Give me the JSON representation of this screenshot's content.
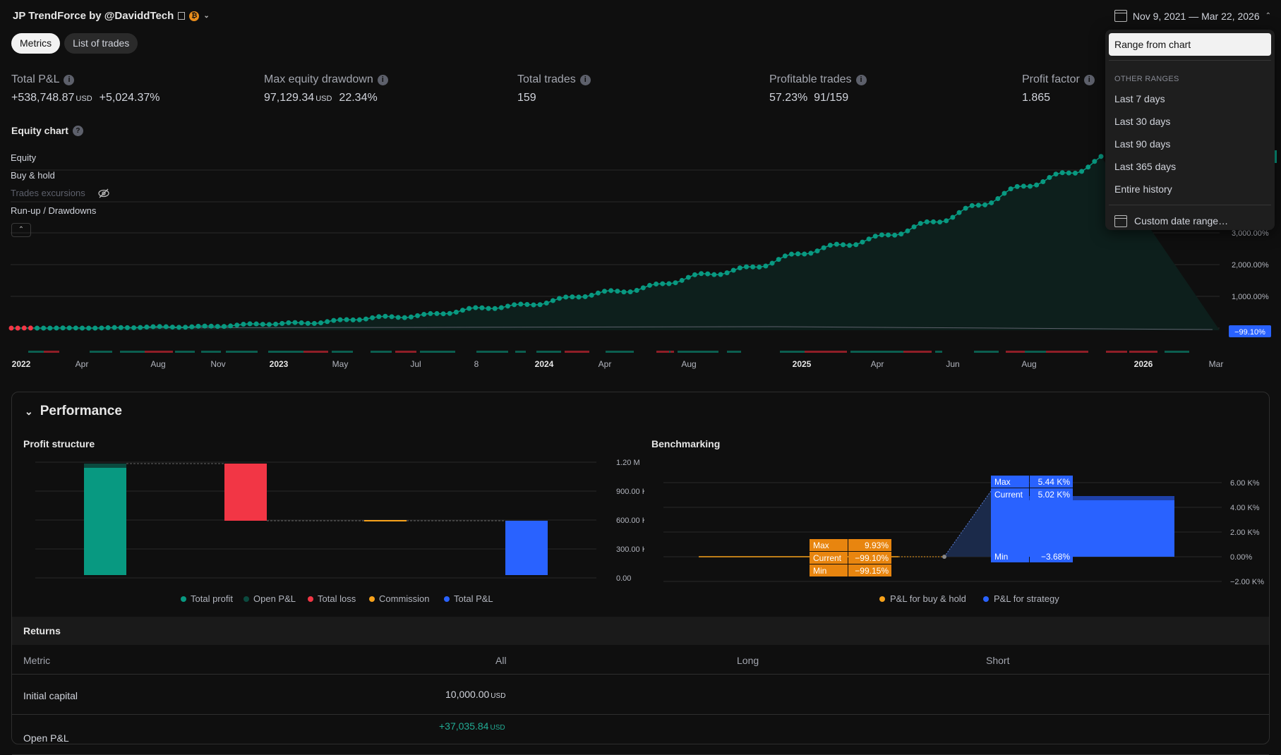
{
  "header": {
    "title": "JP TrendForce by @DaviddTech",
    "date_range": "Nov 9, 2021 — Mar 22, 2026"
  },
  "tabs": [
    {
      "label": "Metrics",
      "active": true
    },
    {
      "label": "List of trades",
      "active": false
    }
  ],
  "metrics": [
    {
      "label": "Total P&L",
      "value": "+538,748.87",
      "unit": "USD",
      "extra": "+5,024.37%",
      "color": "#22ab94"
    },
    {
      "label": "Max equity drawdown",
      "value": "97,129.34",
      "unit": "USD",
      "extra": "22.34%",
      "color": "#d1d4dc"
    },
    {
      "label": "Total trades",
      "value": "159",
      "unit": "",
      "extra": "",
      "color": "#d1d4dc"
    },
    {
      "label": "Profitable trades",
      "value": "57.23%",
      "unit": "",
      "extra": "91/159",
      "color": "#d1d4dc"
    },
    {
      "label": "Profit factor",
      "value": "1.865",
      "unit": "",
      "extra": "",
      "color": "#d1d4dc"
    }
  ],
  "equity_chart": {
    "title": "Equity chart",
    "legend": [
      {
        "label": "Equity",
        "hidden": false
      },
      {
        "label": "Buy & hold",
        "hidden": false
      },
      {
        "label": "Trades excursions",
        "hidden": true
      },
      {
        "label": "Run-up / Drawdowns",
        "hidden": false
      }
    ],
    "y_ticks": [
      "3,000.00%",
      "2,000.00%",
      "1,000.00%"
    ],
    "current_label": "−99.10%",
    "x_ticks": [
      {
        "label": "2022",
        "bold": true
      },
      {
        "label": "Apr",
        "bold": false
      },
      {
        "label": "Aug",
        "bold": false
      },
      {
        "label": "Nov",
        "bold": false
      },
      {
        "label": "2023",
        "bold": true
      },
      {
        "label": "May",
        "bold": false
      },
      {
        "label": "Jul",
        "bold": false
      },
      {
        "label": "8",
        "bold": false
      },
      {
        "label": "2024",
        "bold": true
      },
      {
        "label": "Apr",
        "bold": false
      },
      {
        "label": "Aug",
        "bold": false
      },
      {
        "label": "2025",
        "bold": true
      },
      {
        "label": "Apr",
        "bold": false
      },
      {
        "label": "Jun",
        "bold": false
      },
      {
        "label": "Aug",
        "bold": false
      },
      {
        "label": "2026",
        "bold": true
      },
      {
        "label": "Mar",
        "bold": false
      }
    ],
    "colors": {
      "equity": "#089981",
      "loss": "#f23645",
      "bar_up": "#0b5e4f",
      "bar_down": "#8f1e27"
    }
  },
  "dropdown": {
    "selected": "Range from chart",
    "section": "OTHER RANGES",
    "items": [
      "Last 7 days",
      "Last 30 days",
      "Last 90 days",
      "Last 365 days",
      "Entire history"
    ],
    "custom": "Custom date range…"
  },
  "performance": {
    "title": "Performance",
    "profit_structure": {
      "title": "Profit structure",
      "y_ticks": [
        "1.20 M",
        "900.00 K",
        "600.00 K",
        "300.00 K",
        "0.00"
      ],
      "legend": [
        {
          "label": "Total profit",
          "color": "#089981"
        },
        {
          "label": "Open P&L",
          "color": "#0b4a3f"
        },
        {
          "label": "Total loss",
          "color": "#f23645"
        },
        {
          "label": "Commission",
          "color": "#f7a21b"
        },
        {
          "label": "Total P&L",
          "color": "#2962ff"
        }
      ]
    },
    "benchmarking": {
      "title": "Benchmarking",
      "y_ticks": [
        "6.00 K%",
        "4.00 K%",
        "2.00 K%",
        "0.00%",
        "−2.00 K%"
      ],
      "bh_labels": [
        {
          "k": "Max",
          "v": "9.93%"
        },
        {
          "k": "Current",
          "v": "−99.10%"
        },
        {
          "k": "Min",
          "v": "−99.15%"
        }
      ],
      "strat_labels": [
        {
          "k": "Max",
          "v": "5.44 K%"
        },
        {
          "k": "Current",
          "v": "5.02 K%"
        },
        {
          "k": "Min",
          "v": "−3.68%"
        }
      ],
      "legend": [
        {
          "label": "P&L for buy & hold",
          "color": "#f7a21b"
        },
        {
          "label": "P&L for strategy",
          "color": "#2962ff"
        }
      ]
    },
    "returns": {
      "title": "Returns",
      "columns": [
        "Metric",
        "All",
        "Long",
        "Short"
      ],
      "rows": [
        {
          "metric": "Initial capital",
          "all": "10,000.00",
          "unit": "USD"
        },
        {
          "metric": "Open P&L",
          "all": "+37,035.84",
          "unit": "USD"
        }
      ]
    }
  }
}
